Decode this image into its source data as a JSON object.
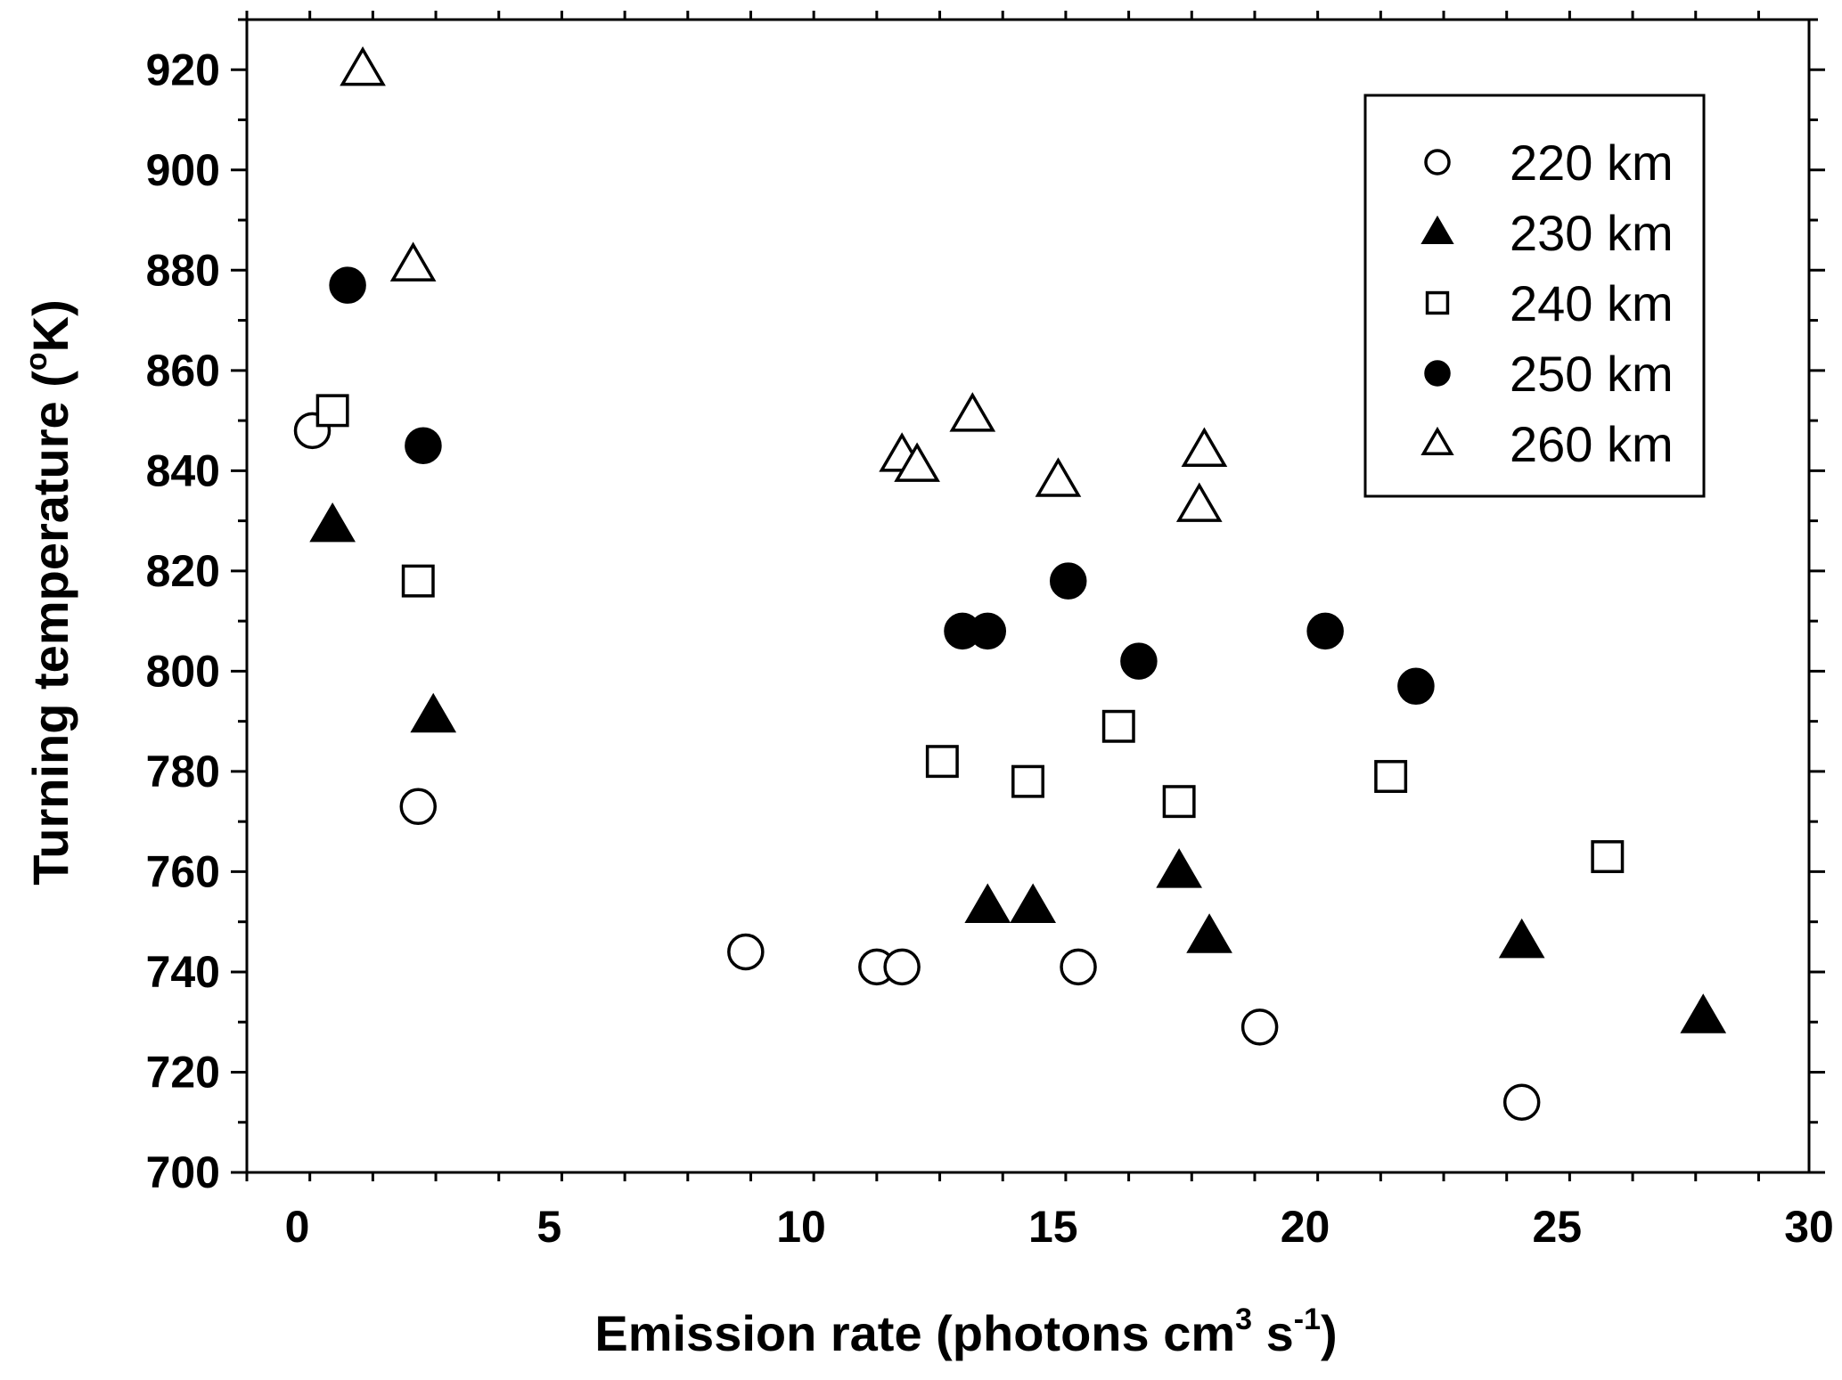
{
  "chart_data": {
    "type": "scatter",
    "xlabel": "Emission rate (photons cm",
    "xlabel_sup1": "3",
    "xlabel_mid": " s",
    "xlabel_sup2": "-1",
    "xlabel_end": ")",
    "ylabel": "Turning temperature (",
    "ylabel_sup": "o",
    "ylabel_end": "K)",
    "xlim": [
      -1,
      30
    ],
    "ylim": [
      700,
      930
    ],
    "xticks": [
      "0",
      "5",
      "10",
      "15",
      "20",
      "25",
      "30"
    ],
    "xtick_values": [
      0,
      5,
      10,
      15,
      20,
      25,
      30
    ],
    "yticks": [
      "700",
      "720",
      "740",
      "760",
      "780",
      "800",
      "820",
      "840",
      "860",
      "880",
      "900",
      "920"
    ],
    "ytick_values": [
      700,
      720,
      740,
      760,
      780,
      800,
      820,
      840,
      860,
      880,
      900,
      920
    ],
    "grid": false,
    "legend_position": "top-right",
    "series": [
      {
        "name": "220 km",
        "marker": "circle-open",
        "points": [
          [
            0.3,
            848
          ],
          [
            2.4,
            773
          ],
          [
            8.9,
            744
          ],
          [
            11.5,
            741
          ],
          [
            12.0,
            741
          ],
          [
            15.5,
            741
          ],
          [
            19.1,
            729
          ],
          [
            24.3,
            714
          ]
        ]
      },
      {
        "name": "230 km",
        "marker": "triangle-filled",
        "points": [
          [
            0.7,
            829
          ],
          [
            2.7,
            791
          ],
          [
            13.7,
            753
          ],
          [
            14.6,
            753
          ],
          [
            17.5,
            760
          ],
          [
            18.1,
            747
          ],
          [
            24.3,
            746
          ],
          [
            27.9,
            731
          ]
        ]
      },
      {
        "name": "240 km",
        "marker": "square-open",
        "points": [
          [
            0.7,
            852
          ],
          [
            2.4,
            818
          ],
          [
            12.8,
            782
          ],
          [
            14.5,
            778
          ],
          [
            16.3,
            789
          ],
          [
            17.5,
            774
          ],
          [
            21.7,
            779
          ],
          [
            26.0,
            763
          ]
        ]
      },
      {
        "name": "250 km",
        "marker": "circle-filled",
        "points": [
          [
            1.0,
            877
          ],
          [
            2.5,
            845
          ],
          [
            13.2,
            808
          ],
          [
            13.7,
            808
          ],
          [
            15.3,
            818
          ],
          [
            16.7,
            802
          ],
          [
            20.4,
            808
          ],
          [
            22.2,
            797
          ]
        ]
      },
      {
        "name": "260 km",
        "marker": "triangle-open",
        "points": [
          [
            1.3,
            920
          ],
          [
            2.3,
            881
          ],
          [
            12.0,
            843
          ],
          [
            12.3,
            841
          ],
          [
            13.4,
            851
          ],
          [
            15.1,
            838
          ],
          [
            17.9,
            833
          ],
          [
            18.0,
            844
          ]
        ]
      }
    ],
    "colors": {
      "marker": "#000000",
      "background": "#ffffff"
    }
  }
}
